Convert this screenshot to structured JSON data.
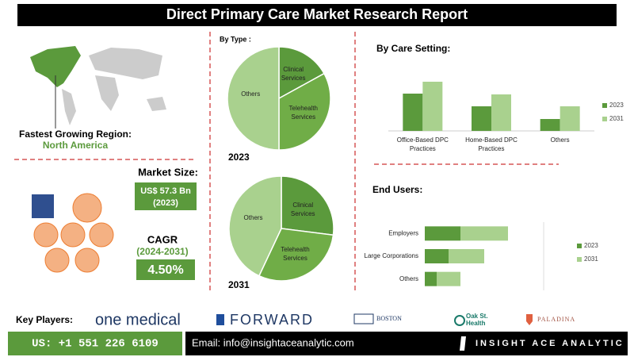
{
  "header": {
    "title": "Direct Primary Care Market Research Report"
  },
  "region": {
    "label": "Fastest Growing Region:",
    "value": "North America"
  },
  "market": {
    "label": "Market Size:",
    "value": "US$ 57.3 Bn",
    "year": "(2023)",
    "cagr_label": "CAGR",
    "cagr_period": "(2024-2031)",
    "cagr_value": "4.50%"
  },
  "type_section": {
    "title": "By Type :"
  },
  "chart_data": [
    {
      "type": "pie",
      "title": "2023",
      "categories": [
        "Clinical Services",
        "Telehealth Services",
        "Others"
      ],
      "values": [
        17,
        33,
        50
      ],
      "colors": [
        "#5b9a3c",
        "#70ad47",
        "#a9d18e"
      ]
    },
    {
      "type": "pie",
      "title": "2031",
      "categories": [
        "Clinical Services",
        "Telehealth Services",
        "Others"
      ],
      "values": [
        27,
        30,
        43
      ],
      "colors": [
        "#5b9a3c",
        "#70ad47",
        "#a9d18e"
      ]
    },
    {
      "type": "bar",
      "title": "By Care Setting:",
      "categories": [
        "Office-Based DPC Practices",
        "Home-Based DPC Practices",
        "Others"
      ],
      "series": [
        {
          "name": "2023",
          "color": "#5b9a3c",
          "values": [
            47,
            31,
            15
          ]
        },
        {
          "name": "2031",
          "color": "#a9d18e",
          "values": [
            62,
            46,
            31
          ]
        }
      ],
      "ylim": [
        0,
        70
      ]
    },
    {
      "type": "stacked-barh",
      "title": "End Users:",
      "categories": [
        "Employers",
        "Large Corporations",
        "Others"
      ],
      "series": [
        {
          "name": "2023",
          "color": "#5b9a3c",
          "values": [
            45,
            30,
            15
          ]
        },
        {
          "name": "2031",
          "color": "#a9d18e",
          "values": [
            60,
            45,
            30
          ]
        }
      ],
      "xlim": [
        0,
        150
      ]
    }
  ],
  "footer": {
    "key_players_label": "Key Players:",
    "players": [
      "one medical",
      "FORWARD",
      "BOSTON",
      "Oak St. Health",
      "PALADINA"
    ],
    "phone": "US: +1 551 226 6109",
    "email": "Email: info@insightaceanalytic.com",
    "brand": "INSIGHT ACE ANALYTIC"
  }
}
